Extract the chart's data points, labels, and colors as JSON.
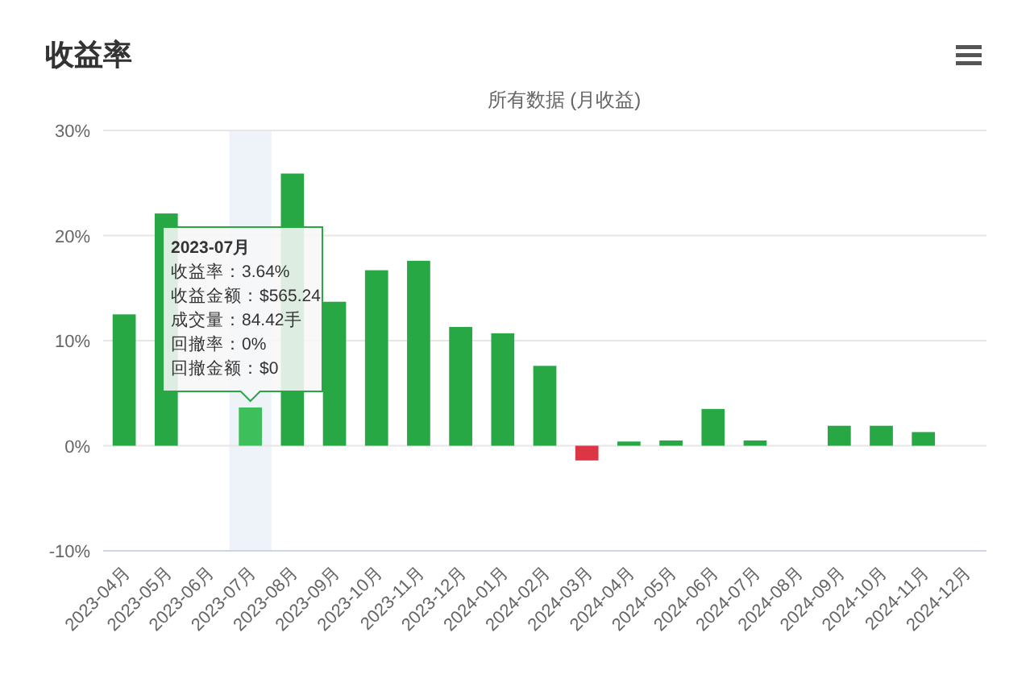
{
  "chart_data": {
    "type": "bar",
    "title": "收益率",
    "subtitle": "所有数据 (月收益)",
    "categories": [
      "2023-04月",
      "2023-05月",
      "2023-06月",
      "2023-07月",
      "2023-08月",
      "2023-09月",
      "2023-10月",
      "2023-11月",
      "2023-12月",
      "2024-01月",
      "2024-02月",
      "2024-03月",
      "2024-04月",
      "2024-05月",
      "2024-06月",
      "2024-07月",
      "2024-08月",
      "2024-09月",
      "2024-10月",
      "2024-11月",
      "2024-12月"
    ],
    "values": [
      12.5,
      22.1,
      null,
      3.64,
      25.9,
      13.7,
      16.7,
      17.6,
      11.3,
      10.7,
      7.6,
      -1.4,
      0.4,
      0.5,
      3.5,
      0.5,
      0,
      1.9,
      1.9,
      1.3,
      0
    ],
    "colors": [
      "#28a745",
      "#28a745",
      null,
      "#3dbf5c",
      "#28a745",
      "#28a745",
      "#28a745",
      "#28a745",
      "#28a745",
      "#28a745",
      "#28a745",
      "#dc3545",
      "#28a745",
      "#28a745",
      "#28a745",
      "#28a745",
      "#28a745",
      "#28a745",
      "#28a745",
      "#28a745",
      "#28a745"
    ],
    "ylim": [
      -10,
      30
    ],
    "yticks": [
      {
        "value": -10,
        "label": "-10%"
      },
      {
        "value": 0,
        "label": "0%"
      },
      {
        "value": 10,
        "label": "10%"
      },
      {
        "value": 20,
        "label": "20%"
      },
      {
        "value": 30,
        "label": "30%"
      }
    ],
    "grid": "y",
    "bands": [
      {
        "axis": "x",
        "from": "2023-07月",
        "to": "2023-07月",
        "color": "#eef2f9"
      }
    ],
    "annotations": [
      "2023-07月",
      "收益率：3.64%",
      "收益金额：$565.24",
      "成交量：84.42手",
      "回撤率：0%",
      "回撤金额：$0"
    ]
  }
}
